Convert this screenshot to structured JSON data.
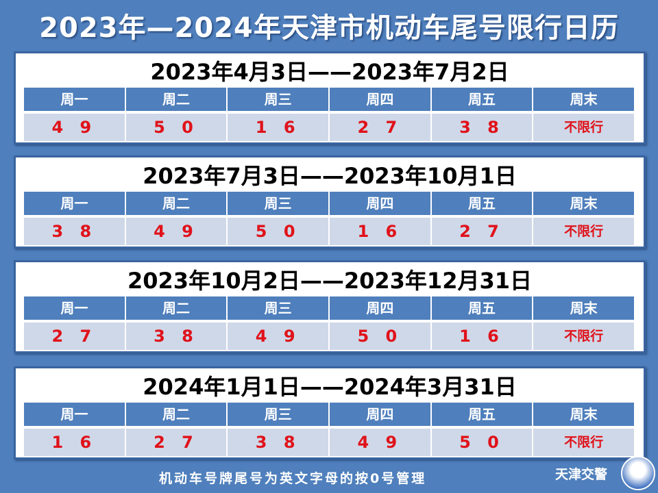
{
  "title": "2023年—2024年天津市机动车尾号限行日历",
  "headers": [
    "周一",
    "周二",
    "周三",
    "周四",
    "周五",
    "周末"
  ],
  "periods": [
    {
      "range": "2023年4月3日——2023年7月2日",
      "values": [
        "4 9",
        "5 0",
        "1 6",
        "2 7",
        "3 8",
        "不限行"
      ]
    },
    {
      "range": "2023年7月3日——2023年10月1日",
      "values": [
        "3 8",
        "4 9",
        "5 0",
        "1 6",
        "2 7",
        "不限行"
      ]
    },
    {
      "range": "2023年10月2日——2023年12月31日",
      "values": [
        "2 7",
        "3 8",
        "4 9",
        "5 0",
        "1 6",
        "不限行"
      ]
    },
    {
      "range": "2024年1月1日——2024年3月31日",
      "values": [
        "1 6",
        "2 7",
        "3 8",
        "4 9",
        "5 0",
        "不限行"
      ]
    }
  ],
  "footer": "机动车号牌尾号为英文字母的按0号管理",
  "brand": "天津交警",
  "colors": {
    "background": "#4f7fbc",
    "header": "#4f7fbc",
    "value_cell": "#cfd8e8",
    "value_text": "#e0121a"
  }
}
